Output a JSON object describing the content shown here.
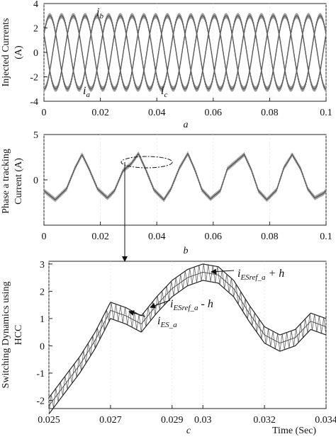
{
  "chart_data": [
    {
      "type": "line",
      "panel": "a",
      "ylabel": "Injected Currents (A)",
      "xlim": [
        0,
        0.1
      ],
      "ylim": [
        -4,
        4
      ],
      "xticks": [
        "0",
        "0.02",
        "0.04",
        "0.06",
        "0.08",
        "0.1"
      ],
      "yticks": [
        "4",
        "2",
        "0",
        "-2",
        "-4"
      ],
      "annotations": {
        "ib": "b",
        "ia": "a",
        "ic": "c"
      },
      "series": [
        {
          "name": "i_a",
          "amplitude": 3.0,
          "frequency_hz": 80,
          "phase_deg": -90
        },
        {
          "name": "i_b",
          "amplitude": 3.0,
          "frequency_hz": 80,
          "phase_deg": 30
        },
        {
          "name": "i_c",
          "amplitude": 3.0,
          "frequency_hz": 80,
          "phase_deg": 150
        }
      ]
    },
    {
      "type": "line",
      "panel": "b",
      "ylabel": "Phase a tracking Current (A)",
      "xlim": [
        0,
        0.1
      ],
      "ylim": [
        -5,
        5
      ],
      "xticks": [
        "0",
        "0.02",
        "0.04",
        "0.06",
        "0.08",
        "0.1"
      ],
      "yticks": [
        "0",
        "5"
      ],
      "x": [
        0,
        0.004,
        0.008,
        0.011,
        0.0135,
        0.016,
        0.019,
        0.0225,
        0.025,
        0.028,
        0.031,
        0.0335,
        0.036,
        0.039,
        0.0425,
        0.045,
        0.048,
        0.051,
        0.0535,
        0.056,
        0.059,
        0.0625,
        0.065,
        0.068,
        0.071,
        0.0735,
        0.076,
        0.079,
        0.0825,
        0.085,
        0.088,
        0.091,
        0.0935,
        0.096,
        0.099,
        0.1
      ],
      "y": [
        -1.2,
        -2.2,
        -1.0,
        1.3,
        2.8,
        1.2,
        -1.0,
        -2.0,
        -1.2,
        1.0,
        1.8,
        2.9,
        1.2,
        -1.1,
        -2.2,
        -1.0,
        1.3,
        2.9,
        1.1,
        -1.1,
        -2.1,
        -1.2,
        1.2,
        2.0,
        2.8,
        1.1,
        -1.2,
        -2.2,
        -1.1,
        1.3,
        2.8,
        1.2,
        -1.0,
        -2.0,
        -1.5,
        -1.2
      ]
    },
    {
      "type": "line",
      "panel": "c",
      "ylabel": "Switching Dynamics using HCC",
      "xlabel": "Time (Sec)",
      "xlim": [
        0.025,
        0.034
      ],
      "ylim": [
        -2.3,
        3.1
      ],
      "xticks": [
        "0.025",
        "0.027",
        "0.029",
        "0.03",
        "0.032",
        "0.034"
      ],
      "yticks": [
        "3",
        "2",
        "1",
        "0",
        "-1",
        "-2"
      ],
      "band_half_width": 0.3,
      "series": [
        {
          "name": "i_ES_a",
          "x": [
            0.025,
            0.026,
            0.0265,
            0.027,
            0.0275,
            0.028,
            0.0285,
            0.029,
            0.0295,
            0.03,
            0.0305,
            0.031,
            0.0315,
            0.032,
            0.0325,
            0.033,
            0.0335,
            0.034
          ],
          "y": [
            -2.2,
            -0.7,
            0.2,
            1.3,
            1.1,
            0.8,
            1.5,
            2.1,
            2.5,
            2.7,
            2.6,
            2.1,
            1.2,
            0.4,
            0.1,
            0.3,
            0.9,
            0.7
          ]
        }
      ],
      "annotations": {
        "upper": {
          "sub": "ESref_a",
          "suffix": " + h"
        },
        "lower": {
          "sub": "ESref_a",
          "suffix": " - h"
        },
        "actual": {
          "sub": "ES_a"
        }
      }
    }
  ],
  "panel_labels": [
    "a",
    "b",
    "c"
  ],
  "ylabels": {
    "a": [
      "Injected Currents",
      "(A)"
    ],
    "b": [
      "Phase a tracking",
      "Current (A)"
    ],
    "c": [
      "Switching Dynamics using",
      "HCC"
    ]
  },
  "italic_i": "i",
  "colors": {
    "trace": "#555555",
    "axis": "#222222"
  }
}
